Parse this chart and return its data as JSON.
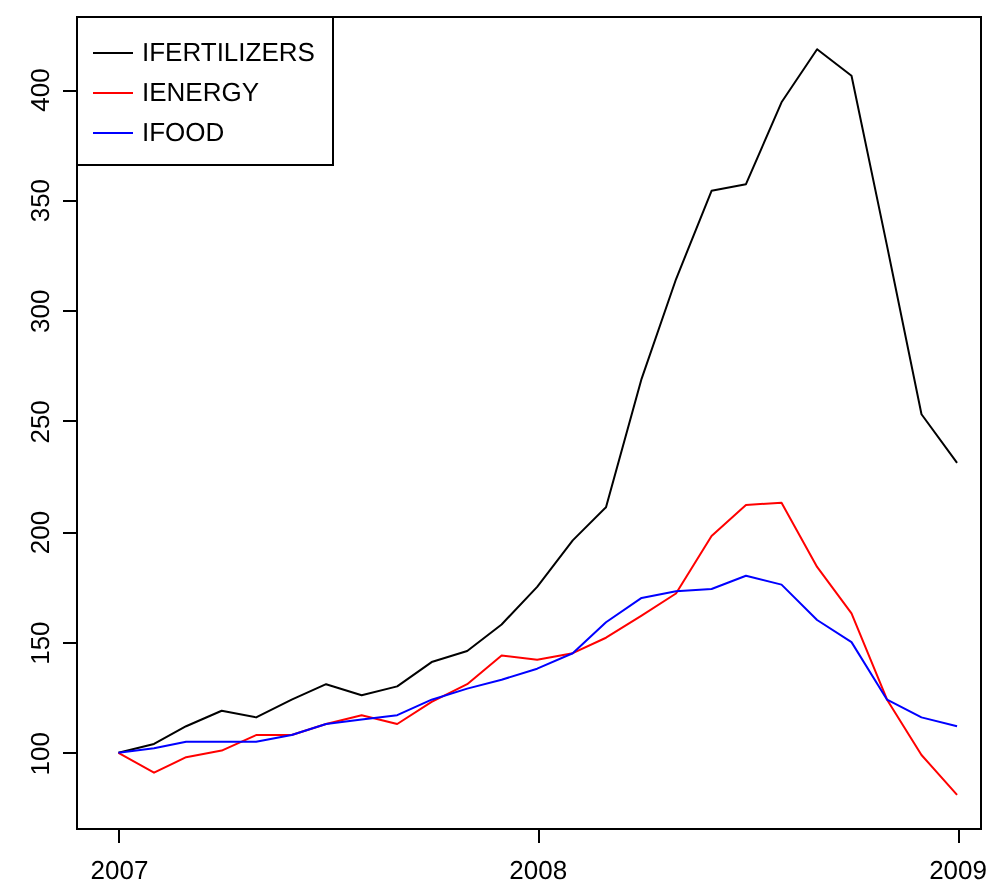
{
  "chart_data": {
    "type": "line",
    "x": [
      "2007-01",
      "2007-02",
      "2007-03",
      "2007-04",
      "2007-05",
      "2007-06",
      "2007-07",
      "2007-08",
      "2007-09",
      "2007-10",
      "2007-11",
      "2007-12",
      "2008-01",
      "2008-02",
      "2008-03",
      "2008-04",
      "2008-05",
      "2008-06",
      "2008-07",
      "2008-08",
      "2008-09",
      "2008-10",
      "2008-11",
      "2008-12",
      "2009-01"
    ],
    "series": [
      {
        "name": "IFERTILIZERS",
        "color": "#000000",
        "values": [
          100,
          104,
          112,
          119,
          116,
          124,
          131,
          126,
          130,
          141,
          146,
          158,
          175,
          196,
          211,
          269,
          314,
          354,
          357,
          394,
          418,
          406,
          329,
          253,
          231
        ]
      },
      {
        "name": "IENERGY",
        "color": "#ff0000",
        "values": [
          100,
          91,
          98,
          101,
          108,
          108,
          113,
          117,
          113,
          123,
          131,
          144,
          142,
          145,
          152,
          162,
          172,
          198,
          212,
          213,
          184,
          163,
          124,
          99,
          81
        ]
      },
      {
        "name": "IFOOD",
        "color": "#0000ff",
        "values": [
          100,
          102,
          105,
          105,
          105,
          108,
          113,
          115,
          117,
          124,
          129,
          133,
          138,
          145,
          159,
          170,
          173,
          174,
          180,
          176,
          160,
          150,
          124,
          116,
          112
        ]
      }
    ],
    "xlim": [
      "2006-11-25",
      "2009-01-21"
    ],
    "xticks": [
      {
        "value": "2007-01",
        "label": "2007"
      },
      {
        "value": "2008-01",
        "label": "2008"
      },
      {
        "value": "2009-01",
        "label": "2009"
      }
    ],
    "ylim": [
      66,
      433
    ],
    "yticks": [
      100,
      150,
      200,
      250,
      300,
      350,
      400
    ],
    "grid": false,
    "legend": "top left",
    "marker": "none",
    "line_style": "solid"
  }
}
